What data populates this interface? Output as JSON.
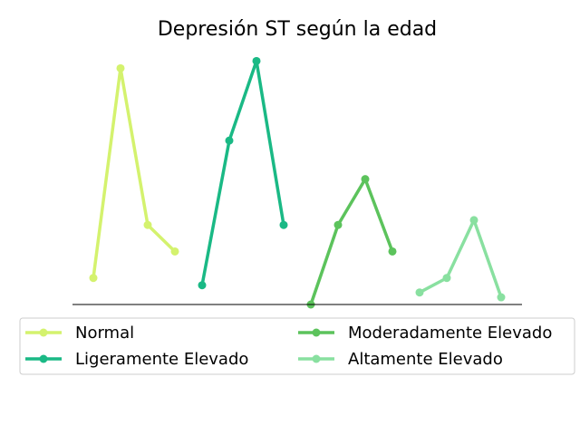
{
  "chart_data": {
    "type": "line",
    "title": "Depresión ST según la edad",
    "xlabel": "",
    "ylabel": "",
    "grid": false,
    "legend_position": "bottom",
    "ylim": [
      0,
      100
    ],
    "series": [
      {
        "name": "Normal",
        "color": "#d4f26e",
        "x": [
          1,
          2,
          3,
          4
        ],
        "values": [
          11,
          98,
          33,
          22
        ]
      },
      {
        "name": "Ligeramente Elevado",
        "color": "#1ab985",
        "x": [
          5,
          6,
          7,
          8
        ],
        "values": [
          8,
          68,
          101,
          33
        ]
      },
      {
        "name": "Moderadamente Elevado",
        "color": "#5cc35c",
        "x": [
          9,
          10,
          11,
          12
        ],
        "values": [
          0,
          33,
          52,
          22
        ]
      },
      {
        "name": "Altamente Elevado",
        "color": "#89e0a0",
        "x": [
          13,
          14,
          15,
          16
        ],
        "values": [
          5,
          11,
          35,
          3
        ]
      }
    ]
  }
}
